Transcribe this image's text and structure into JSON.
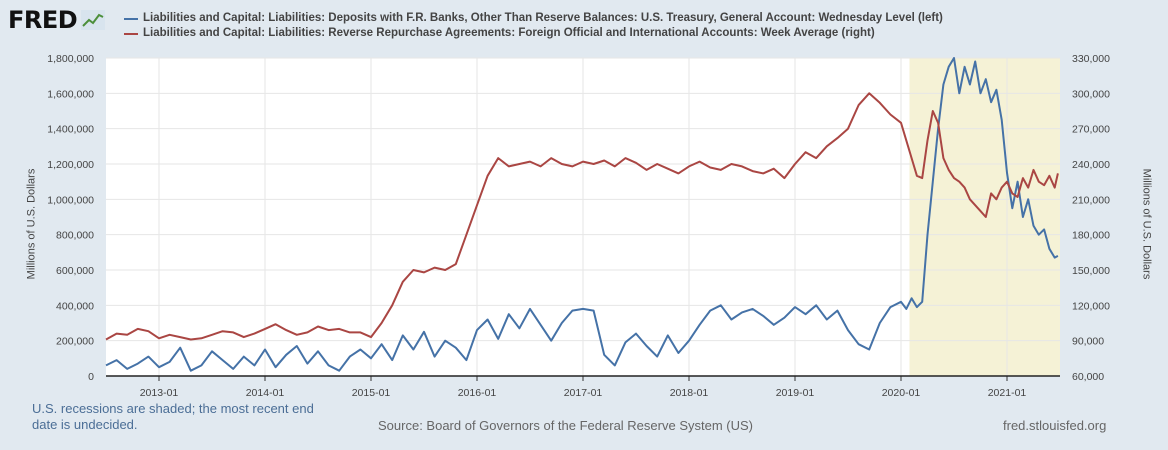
{
  "header": {
    "logo_text": "FRED"
  },
  "legend": {
    "items": [
      {
        "label": "Liabilities and Capital: Liabilities: Deposits with F.R. Banks, Other Than Reserve Balances: U.S. Treasury, General Account: Wednesday Level (left)",
        "color": "#4572a7"
      },
      {
        "label": "Liabilities and Capital: Liabilities: Reverse Repurchase Agreements: Foreign Official and International Accounts: Week Average (right)",
        "color": "#aa4643"
      }
    ]
  },
  "footer": {
    "recession_note": "U.S. recessions are shaded; the most recent end date is undecided.",
    "source": "Source: Board of Governors of the Federal Reserve System (US)",
    "url": "fred.stlouisfed.org"
  },
  "chart_data": {
    "type": "line",
    "ylabel_left": "Millions of U.S. Dollars",
    "ylabel_right": "Millions of U.S. Dollars",
    "x_ticks": [
      "2013-01",
      "2014-01",
      "2015-01",
      "2016-01",
      "2017-01",
      "2018-01",
      "2019-01",
      "2020-01",
      "2021-01"
    ],
    "y_left_ticks": [
      "0",
      "200,000",
      "400,000",
      "600,000",
      "800,000",
      "1,000,000",
      "1,200,000",
      "1,400,000",
      "1,600,000",
      "1,800,000"
    ],
    "y_right_ticks": [
      "60,000",
      "90,000",
      "120,000",
      "150,000",
      "180,000",
      "210,000",
      "240,000",
      "270,000",
      "300,000",
      "330,000"
    ],
    "x_range": [
      2012.5,
      2021.5
    ],
    "ylim_left": [
      0,
      1800000
    ],
    "ylim_right": [
      60000,
      330000
    ],
    "grid": true,
    "recession_shading": {
      "start": 2020.08,
      "end": 2021.5,
      "color": "#f5f2d6"
    },
    "series": [
      {
        "name": "Liabilities and Capital: Liabilities: Deposits with F.R. Banks, Other Than Reserve Balances: U.S. Treasury, General Account: Wednesday Level (left)",
        "axis": "left",
        "color": "#4572a7",
        "x": [
          2012.5,
          2012.6,
          2012.7,
          2012.8,
          2012.9,
          2013.0,
          2013.1,
          2013.2,
          2013.3,
          2013.4,
          2013.5,
          2013.6,
          2013.7,
          2013.8,
          2013.9,
          2014.0,
          2014.1,
          2014.2,
          2014.3,
          2014.4,
          2014.5,
          2014.6,
          2014.7,
          2014.8,
          2014.9,
          2015.0,
          2015.1,
          2015.2,
          2015.3,
          2015.4,
          2015.5,
          2015.6,
          2015.7,
          2015.8,
          2015.9,
          2016.0,
          2016.1,
          2016.2,
          2016.3,
          2016.4,
          2016.5,
          2016.6,
          2016.7,
          2016.8,
          2016.9,
          2017.0,
          2017.1,
          2017.2,
          2017.3,
          2017.4,
          2017.5,
          2017.6,
          2017.7,
          2017.8,
          2017.9,
          2018.0,
          2018.1,
          2018.2,
          2018.3,
          2018.4,
          2018.5,
          2018.6,
          2018.7,
          2018.8,
          2018.9,
          2019.0,
          2019.1,
          2019.2,
          2019.3,
          2019.4,
          2019.5,
          2019.6,
          2019.7,
          2019.8,
          2019.9,
          2020.0,
          2020.05,
          2020.1,
          2020.15,
          2020.2,
          2020.25,
          2020.3,
          2020.35,
          2020.4,
          2020.45,
          2020.5,
          2020.55,
          2020.6,
          2020.65,
          2020.7,
          2020.75,
          2020.8,
          2020.85,
          2020.9,
          2020.95,
          2021.0,
          2021.05,
          2021.1,
          2021.15,
          2021.2,
          2021.25,
          2021.3,
          2021.35,
          2021.4,
          2021.45,
          2021.48
        ],
        "y": [
          60000,
          90000,
          40000,
          70000,
          110000,
          50000,
          80000,
          160000,
          30000,
          60000,
          140000,
          90000,
          40000,
          110000,
          60000,
          150000,
          50000,
          120000,
          170000,
          70000,
          140000,
          60000,
          30000,
          110000,
          150000,
          100000,
          180000,
          90000,
          230000,
          150000,
          250000,
          110000,
          200000,
          160000,
          90000,
          260000,
          320000,
          210000,
          350000,
          270000,
          380000,
          290000,
          200000,
          300000,
          370000,
          380000,
          370000,
          120000,
          60000,
          190000,
          240000,
          170000,
          110000,
          230000,
          130000,
          200000,
          290000,
          370000,
          400000,
          320000,
          360000,
          380000,
          340000,
          290000,
          330000,
          390000,
          350000,
          400000,
          320000,
          370000,
          260000,
          180000,
          150000,
          300000,
          390000,
          420000,
          380000,
          440000,
          390000,
          420000,
          800000,
          1100000,
          1400000,
          1650000,
          1750000,
          1800000,
          1600000,
          1750000,
          1650000,
          1780000,
          1600000,
          1680000,
          1550000,
          1620000,
          1450000,
          1150000,
          950000,
          1100000,
          900000,
          1000000,
          850000,
          800000,
          830000,
          720000,
          670000,
          680000
        ]
      },
      {
        "name": "Liabilities and Capital: Liabilities: Reverse Repurchase Agreements: Foreign Official and International Accounts: Week Average (right)",
        "axis": "right",
        "color": "#aa4643",
        "x": [
          2012.5,
          2012.6,
          2012.7,
          2012.8,
          2012.9,
          2013.0,
          2013.1,
          2013.2,
          2013.3,
          2013.4,
          2013.5,
          2013.6,
          2013.7,
          2013.8,
          2013.9,
          2014.0,
          2014.1,
          2014.2,
          2014.3,
          2014.4,
          2014.5,
          2014.6,
          2014.7,
          2014.8,
          2014.9,
          2015.0,
          2015.1,
          2015.2,
          2015.3,
          2015.4,
          2015.5,
          2015.6,
          2015.7,
          2015.8,
          2015.9,
          2016.0,
          2016.1,
          2016.2,
          2016.3,
          2016.4,
          2016.5,
          2016.6,
          2016.7,
          2016.8,
          2016.9,
          2017.0,
          2017.1,
          2017.2,
          2017.3,
          2017.4,
          2017.5,
          2017.6,
          2017.7,
          2017.8,
          2017.9,
          2018.0,
          2018.1,
          2018.2,
          2018.3,
          2018.4,
          2018.5,
          2018.6,
          2018.7,
          2018.8,
          2018.9,
          2019.0,
          2019.1,
          2019.2,
          2019.3,
          2019.4,
          2019.5,
          2019.6,
          2019.7,
          2019.8,
          2019.9,
          2020.0,
          2020.05,
          2020.1,
          2020.15,
          2020.2,
          2020.25,
          2020.3,
          2020.35,
          2020.4,
          2020.45,
          2020.5,
          2020.55,
          2020.6,
          2020.65,
          2020.7,
          2020.75,
          2020.8,
          2020.85,
          2020.9,
          2020.95,
          2021.0,
          2021.05,
          2021.1,
          2021.15,
          2021.2,
          2021.25,
          2021.3,
          2021.35,
          2021.4,
          2021.45,
          2021.48
        ],
        "y": [
          91000,
          96000,
          95000,
          100000,
          98000,
          92000,
          95000,
          93000,
          91000,
          92000,
          95000,
          98000,
          97000,
          93000,
          96000,
          100000,
          104000,
          99000,
          95000,
          97000,
          102000,
          99000,
          100000,
          97000,
          97000,
          93000,
          105000,
          120000,
          140000,
          150000,
          148000,
          152000,
          150000,
          155000,
          180000,
          205000,
          230000,
          245000,
          238000,
          240000,
          242000,
          238000,
          245000,
          240000,
          238000,
          242000,
          240000,
          243000,
          238000,
          245000,
          241000,
          235000,
          240000,
          236000,
          232000,
          238000,
          242000,
          237000,
          235000,
          240000,
          238000,
          234000,
          232000,
          236000,
          228000,
          240000,
          250000,
          245000,
          255000,
          262000,
          270000,
          290000,
          300000,
          292000,
          282000,
          275000,
          260000,
          245000,
          230000,
          228000,
          260000,
          285000,
          275000,
          245000,
          235000,
          228000,
          225000,
          220000,
          210000,
          205000,
          200000,
          195000,
          215000,
          210000,
          220000,
          225000,
          215000,
          212000,
          228000,
          220000,
          235000,
          225000,
          222000,
          230000,
          220000,
          232000
        ]
      }
    ]
  }
}
